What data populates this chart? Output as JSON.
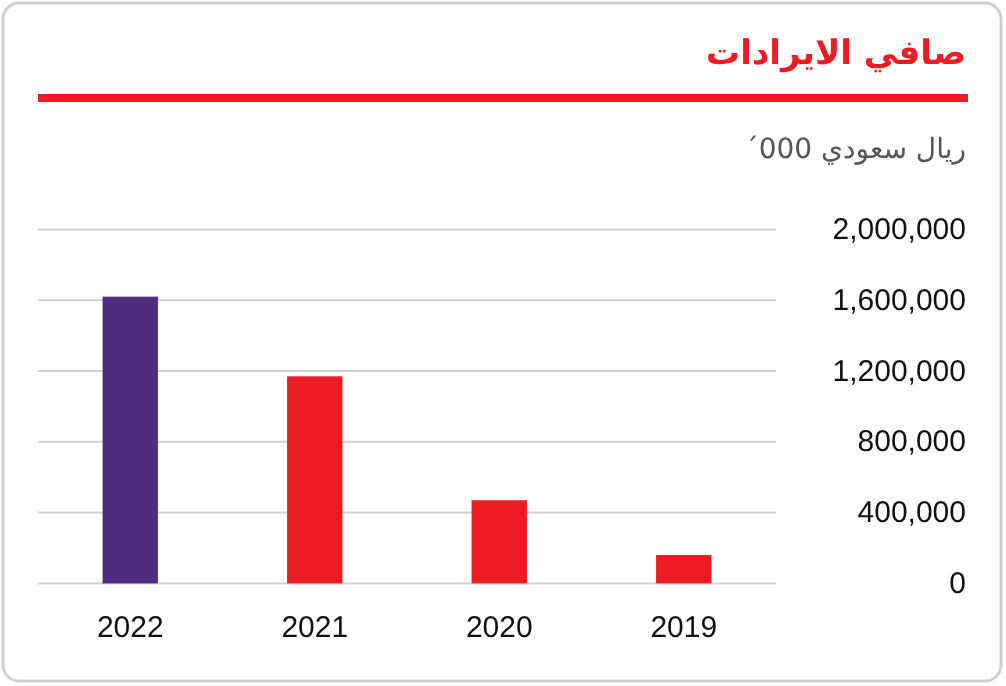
{
  "chart_data": {
    "type": "bar",
    "title": "صافي الايرادات",
    "ylabel": "ريال سعودي 000´",
    "categories": [
      "2022",
      "2021",
      "2020",
      "2019"
    ],
    "values": [
      1620000,
      1170000,
      470000,
      160000
    ],
    "colors": [
      "#4f2d7f",
      "#ed1c24",
      "#ed1c24",
      "#ed1c24"
    ],
    "ylim": [
      0,
      2000000
    ],
    "yticks": [
      0,
      {
        "value": 400000,
        "label": "400,000"
      },
      {
        "value": 800000,
        "label": "800,000"
      },
      {
        "value": 1200000,
        "label": "1,200,000"
      },
      {
        "value": 1600000,
        "label": "1,600,000"
      },
      {
        "value": 2000000,
        "label": "2,000,000"
      }
    ],
    "grid": "y"
  }
}
